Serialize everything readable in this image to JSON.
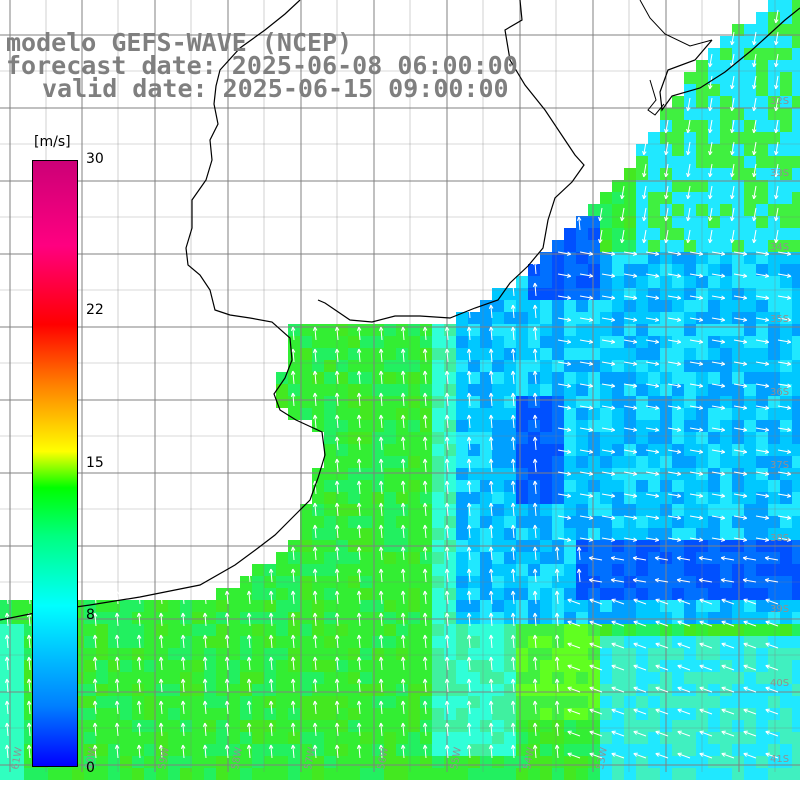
{
  "title": {
    "line1": "modelo GEFS-WAVE (NCEP)",
    "line2": "forecast date: 2025-06-08 06:00:00",
    "line3": "valid date: 2025-06-15 09:00:00"
  },
  "colorbar": {
    "unit": "[m/s]",
    "min": 0,
    "max": 30,
    "ticks": [
      "30",
      "22",
      "15",
      "8",
      "0"
    ]
  },
  "map": {
    "lat_labels": [
      "32S",
      "33S",
      "34S",
      "35S",
      "36S",
      "37S",
      "38S",
      "39S",
      "40S",
      "41S"
    ],
    "lon_labels": [
      "61W",
      "60W",
      "59W",
      "58W",
      "57W",
      "56W",
      "55W",
      "54W",
      "53W"
    ],
    "colors": {
      "land": "#ffffff",
      "grid": "#808080",
      "coast": "#000000",
      "arrow": "#ffffff",
      "green": "#22ee22",
      "cyan": "#22ffff",
      "blue": "#0060ff"
    }
  }
}
